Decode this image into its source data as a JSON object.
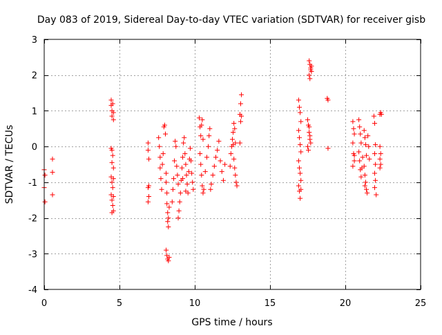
{
  "chart_data": {
    "type": "scatter",
    "title": "Day 083 of 2019, Sidereal Day-to-day VTEC variation (SDTVAR) for receiver gisb",
    "xlabel": "GPS time / hours",
    "ylabel": "SDTVAR / TECUs",
    "xlim": [
      0,
      25
    ],
    "ylim": [
      -4,
      3
    ],
    "x_ticks": [
      0,
      5,
      10,
      15,
      20,
      25
    ],
    "y_ticks": [
      -4,
      -3,
      -2,
      -1,
      0,
      1,
      2,
      3
    ],
    "grid": true,
    "marker": "+",
    "marker_color": "#ff0000",
    "series": [
      {
        "name": "SDTVAR",
        "points": [
          [
            0.0,
            -0.65
          ],
          [
            0.05,
            -0.8
          ],
          [
            0.0,
            -1.15
          ],
          [
            0.05,
            -1.55
          ],
          [
            0.55,
            -0.35
          ],
          [
            0.55,
            -0.72
          ],
          [
            0.55,
            -1.35
          ],
          [
            4.45,
            1.3
          ],
          [
            4.45,
            1.15
          ],
          [
            4.5,
            1.0
          ],
          [
            4.5,
            0.85
          ],
          [
            4.55,
            1.2
          ],
          [
            4.6,
            0.95
          ],
          [
            4.6,
            0.75
          ],
          [
            4.45,
            -0.05
          ],
          [
            4.5,
            -0.1
          ],
          [
            4.55,
            -0.25
          ],
          [
            4.5,
            -0.45
          ],
          [
            4.6,
            -0.6
          ],
          [
            4.45,
            -0.85
          ],
          [
            4.5,
            -1.0
          ],
          [
            4.55,
            -1.15
          ],
          [
            4.6,
            -0.9
          ],
          [
            4.45,
            -1.35
          ],
          [
            4.5,
            -1.5
          ],
          [
            4.55,
            -1.65
          ],
          [
            4.6,
            -1.8
          ],
          [
            4.5,
            -1.85
          ],
          [
            4.6,
            -1.4
          ],
          [
            6.9,
            0.1
          ],
          [
            6.9,
            -0.1
          ],
          [
            6.95,
            -0.35
          ],
          [
            6.95,
            -1.1
          ],
          [
            6.9,
            -1.15
          ],
          [
            6.95,
            -1.4
          ],
          [
            6.9,
            -1.55
          ],
          [
            7.6,
            0.25
          ],
          [
            7.65,
            0.0
          ],
          [
            7.7,
            -0.3
          ],
          [
            7.7,
            -0.6
          ],
          [
            7.75,
            -0.9
          ],
          [
            7.8,
            -1.2
          ],
          [
            7.85,
            -0.5
          ],
          [
            7.9,
            -0.2
          ],
          [
            7.95,
            0.55
          ],
          [
            8.0,
            0.6
          ],
          [
            8.05,
            0.35
          ],
          [
            8.1,
            -0.75
          ],
          [
            8.1,
            -1.0
          ],
          [
            8.15,
            -1.3
          ],
          [
            8.15,
            -1.6
          ],
          [
            8.2,
            -1.85
          ],
          [
            8.2,
            -2.1
          ],
          [
            8.25,
            -2.25
          ],
          [
            8.25,
            -2.0
          ],
          [
            8.3,
            -1.7
          ],
          [
            8.1,
            -2.9
          ],
          [
            8.15,
            -3.05
          ],
          [
            8.2,
            -3.15
          ],
          [
            8.25,
            -3.2
          ],
          [
            8.3,
            -3.1
          ],
          [
            8.5,
            -1.55
          ],
          [
            8.55,
            -1.2
          ],
          [
            8.6,
            -0.9
          ],
          [
            8.65,
            -0.4
          ],
          [
            8.7,
            0.15
          ],
          [
            8.75,
            0.0
          ],
          [
            8.8,
            -0.55
          ],
          [
            8.85,
            -0.8
          ],
          [
            8.9,
            -1.05
          ],
          [
            8.9,
            -2.0
          ],
          [
            8.95,
            -1.8
          ],
          [
            9.0,
            -1.55
          ],
          [
            9.05,
            -1.3
          ],
          [
            9.1,
            -0.95
          ],
          [
            9.15,
            -0.6
          ],
          [
            9.2,
            -0.3
          ],
          [
            9.25,
            0.1
          ],
          [
            9.3,
            0.25
          ],
          [
            9.35,
            -0.2
          ],
          [
            9.4,
            -0.5
          ],
          [
            9.45,
            -0.8
          ],
          [
            9.5,
            -1.05
          ],
          [
            9.55,
            -1.3
          ],
          [
            9.6,
            -0.7
          ],
          [
            9.65,
            -0.35
          ],
          [
            9.7,
            -0.05
          ],
          [
            9.75,
            -0.4
          ],
          [
            9.8,
            -0.75
          ],
          [
            9.85,
            -1.0
          ],
          [
            9.9,
            -1.2
          ],
          [
            9.4,
            -1.25
          ],
          [
            9.2,
            -0.9
          ],
          [
            10.3,
            0.8
          ],
          [
            10.35,
            0.55
          ],
          [
            10.4,
            0.3
          ],
          [
            10.45,
            0.6
          ],
          [
            10.5,
            0.75
          ],
          [
            10.55,
            0.2
          ],
          [
            10.35,
            -0.2
          ],
          [
            10.4,
            -0.5
          ],
          [
            10.45,
            -0.8
          ],
          [
            10.5,
            -1.1
          ],
          [
            10.55,
            -1.3
          ],
          [
            10.6,
            -1.2
          ],
          [
            10.7,
            -0.7
          ],
          [
            10.8,
            -0.3
          ],
          [
            10.9,
            0.0
          ],
          [
            10.95,
            0.3
          ],
          [
            11.0,
            0.5
          ],
          [
            11.05,
            -1.2
          ],
          [
            11.1,
            -1.05
          ],
          [
            11.2,
            -0.8
          ],
          [
            11.3,
            -0.55
          ],
          [
            11.4,
            -0.3
          ],
          [
            11.5,
            -0.1
          ],
          [
            11.6,
            0.15
          ],
          [
            11.7,
            -0.4
          ],
          [
            11.8,
            -0.7
          ],
          [
            11.9,
            -0.95
          ],
          [
            12.0,
            -0.5
          ],
          [
            12.35,
            -0.55
          ],
          [
            12.4,
            -0.2
          ],
          [
            12.45,
            0.0
          ],
          [
            12.5,
            0.2
          ],
          [
            12.55,
            0.05
          ],
          [
            12.6,
            -0.35
          ],
          [
            12.65,
            -0.6
          ],
          [
            12.7,
            -0.8
          ],
          [
            12.75,
            -1.0
          ],
          [
            12.8,
            -1.1
          ],
          [
            12.55,
            0.4
          ],
          [
            12.6,
            0.65
          ],
          [
            12.65,
            0.5
          ],
          [
            12.7,
            0.1
          ],
          [
            13.0,
            0.1
          ],
          [
            13.05,
            0.7
          ],
          [
            13.1,
            0.85
          ],
          [
            13.05,
            1.2
          ],
          [
            13.1,
            1.45
          ],
          [
            13.0,
            0.9
          ],
          [
            16.9,
            1.3
          ],
          [
            16.95,
            1.1
          ],
          [
            17.0,
            0.95
          ],
          [
            17.05,
            0.7
          ],
          [
            16.9,
            0.45
          ],
          [
            16.95,
            0.25
          ],
          [
            17.0,
            0.05
          ],
          [
            17.05,
            -0.15
          ],
          [
            16.9,
            -0.4
          ],
          [
            16.95,
            -0.6
          ],
          [
            17.0,
            -0.75
          ],
          [
            17.05,
            -0.95
          ],
          [
            16.9,
            -1.1
          ],
          [
            16.95,
            -1.25
          ],
          [
            17.0,
            -1.45
          ],
          [
            17.05,
            -1.2
          ],
          [
            17.5,
            0.75
          ],
          [
            17.55,
            0.6
          ],
          [
            17.6,
            0.4
          ],
          [
            17.65,
            0.2
          ],
          [
            17.5,
            0.0
          ],
          [
            17.55,
            -0.1
          ],
          [
            17.6,
            0.55
          ],
          [
            17.65,
            0.3
          ],
          [
            17.7,
            0.1
          ],
          [
            17.6,
            2.4
          ],
          [
            17.65,
            2.3
          ],
          [
            17.7,
            2.2
          ],
          [
            17.75,
            2.1
          ],
          [
            17.6,
            2.0
          ],
          [
            17.65,
            1.9
          ],
          [
            17.7,
            2.15
          ],
          [
            17.75,
            2.25
          ],
          [
            18.8,
            1.35
          ],
          [
            18.85,
            1.3
          ],
          [
            18.85,
            -0.05
          ],
          [
            20.5,
            0.7
          ],
          [
            20.55,
            0.5
          ],
          [
            20.6,
            0.35
          ],
          [
            20.5,
            0.1
          ],
          [
            20.55,
            -0.2
          ],
          [
            20.6,
            -0.4
          ],
          [
            20.5,
            -0.55
          ],
          [
            20.6,
            -0.25
          ],
          [
            20.9,
            0.75
          ],
          [
            20.95,
            0.55
          ],
          [
            21.0,
            0.35
          ],
          [
            21.05,
            0.1
          ],
          [
            20.9,
            -0.15
          ],
          [
            20.95,
            -0.4
          ],
          [
            21.0,
            -0.65
          ],
          [
            21.05,
            -0.85
          ],
          [
            21.1,
            -0.6
          ],
          [
            21.15,
            -0.3
          ],
          [
            21.25,
            0.45
          ],
          [
            21.3,
            0.25
          ],
          [
            21.35,
            0.05
          ],
          [
            21.4,
            -0.25
          ],
          [
            21.25,
            -0.55
          ],
          [
            21.3,
            -0.8
          ],
          [
            21.35,
            -1.0
          ],
          [
            21.4,
            -1.2
          ],
          [
            21.45,
            -1.3
          ],
          [
            21.3,
            -1.1
          ],
          [
            21.5,
            0.3
          ],
          [
            21.55,
            0.0
          ],
          [
            21.6,
            -0.35
          ],
          [
            21.9,
            0.85
          ],
          [
            21.95,
            0.65
          ],
          [
            22.0,
            0.05
          ],
          [
            21.95,
            -0.2
          ],
          [
            22.0,
            -0.5
          ],
          [
            21.95,
            -0.75
          ],
          [
            22.0,
            -0.95
          ],
          [
            21.95,
            -1.15
          ],
          [
            22.05,
            -1.35
          ],
          [
            22.3,
            0.9
          ],
          [
            22.35,
            0.95
          ],
          [
            22.4,
            0.9
          ],
          [
            22.3,
            0.0
          ],
          [
            22.35,
            -0.2
          ],
          [
            22.3,
            -0.35
          ],
          [
            22.35,
            -0.5
          ],
          [
            22.3,
            -0.6
          ]
        ]
      }
    ]
  }
}
